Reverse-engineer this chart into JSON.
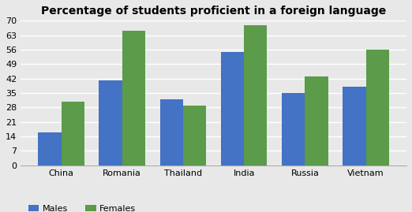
{
  "title": "Percentage of students proficient in a foreign language",
  "categories": [
    "China",
    "Romania",
    "Thailand",
    "India",
    "Russia",
    "Vietnam"
  ],
  "males": [
    16,
    41,
    32,
    55,
    35,
    38
  ],
  "females": [
    31,
    65,
    29,
    68,
    43,
    56
  ],
  "male_color": "#4472C4",
  "female_color": "#5B9B4A",
  "ylim": [
    0,
    70
  ],
  "yticks": [
    0,
    7,
    14,
    21,
    28,
    35,
    42,
    49,
    56,
    63,
    70
  ],
  "legend_labels": [
    "Males",
    "Females"
  ],
  "bar_width": 0.38,
  "background_color": "#E8E8E8",
  "plot_bg_color": "#E8E8E8",
  "grid_color": "#ffffff",
  "title_fontsize": 10,
  "tick_fontsize": 8,
  "legend_fontsize": 8
}
